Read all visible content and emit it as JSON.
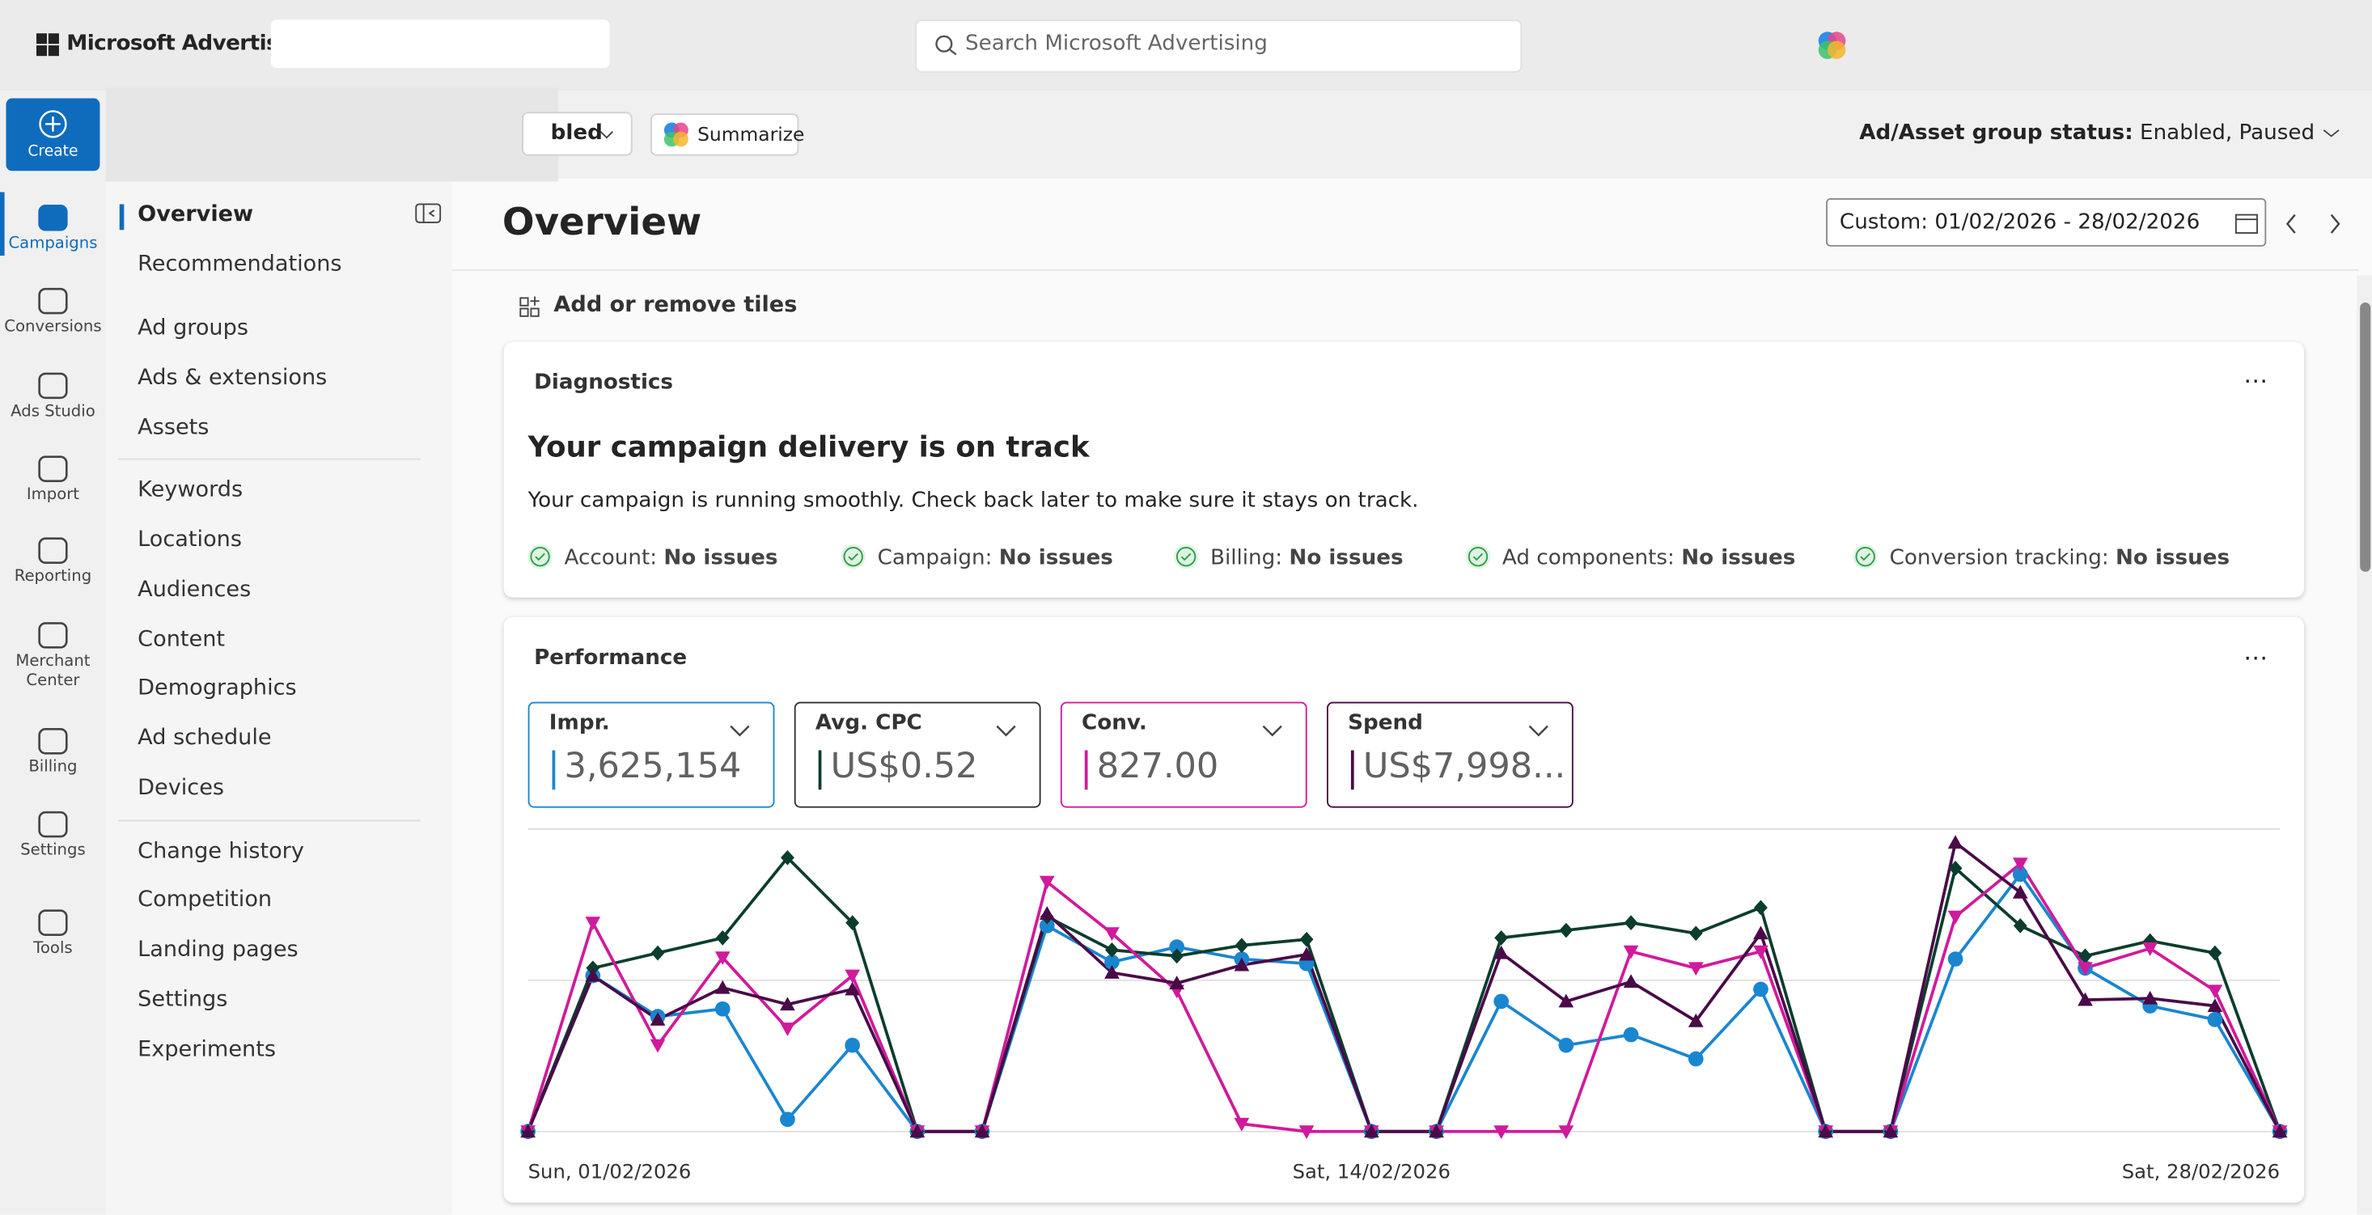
{
  "top_bar": {
    "logo": "Microsoft Advertising",
    "search_placeholder": "Search Microsoft Advertising"
  },
  "rail": {
    "create": "Create",
    "items": [
      "Campaigns",
      "Conversions",
      "Ads Studio",
      "Import",
      "Reporting",
      "Merchant Center",
      "Billing",
      "Settings",
      "Tools"
    ]
  },
  "subnav": {
    "groups": [
      [
        "Overview",
        "Recommendations"
      ],
      [
        "Ad groups",
        "Ads & extensions",
        "Assets"
      ],
      [
        "Keywords",
        "Locations",
        "Audiences",
        "Content",
        "Demographics",
        "Ad schedule",
        "Devices"
      ],
      [
        "Change history",
        "Competition",
        "Landing pages",
        "Settings",
        "Experiments"
      ]
    ]
  },
  "toolbar": {
    "filter": "bled",
    "summarize": "Summarize",
    "status_label": "Ad/Asset group status:",
    "status_value": "Enabled, Paused"
  },
  "page": {
    "title": "Overview",
    "date_range": "Custom: 01/02/2026 - 28/02/2026",
    "add_tiles": "Add or remove tiles"
  },
  "diagnostics": {
    "title": "Diagnostics",
    "heading": "Your campaign delivery is on track",
    "message": "Your campaign is running smoothly. Check back later to make sure it stays on track.",
    "checks": [
      {
        "label": "Account:",
        "status": "No issues"
      },
      {
        "label": "Campaign:",
        "status": "No issues"
      },
      {
        "label": "Billing:",
        "status": "No issues"
      },
      {
        "label": "Ad components:",
        "status": "No issues"
      },
      {
        "label": "Conversion tracking:",
        "status": "No issues"
      }
    ]
  },
  "performance": {
    "title": "Performance",
    "metric_values": [
      "3,625,154",
      "US$0.52",
      "827.00",
      "US$7,998..."
    ]
  },
  "chart_data": {
    "type": "line",
    "categories": [
      "Sun, 01/02/2026",
      null,
      null,
      null,
      null,
      null,
      null,
      null,
      null,
      null,
      null,
      null,
      null,
      "Sat, 14/02/2026",
      null,
      null,
      null,
      null,
      null,
      null,
      null,
      null,
      null,
      null,
      null,
      null,
      null,
      "Sat, 28/02/2026"
    ],
    "series": [
      {
        "name": "Impr.",
        "color": "#1a86d0",
        "marker": "circle",
        "values": [
          0,
          51.5,
          38,
          40.5,
          4,
          28.5,
          0,
          0,
          68,
          56,
          61,
          57,
          55.5,
          0,
          0,
          43,
          28.5,
          32,
          24,
          47,
          0,
          0,
          57,
          85,
          54,
          41.5,
          37,
          0
        ]
      },
      {
        "name": "Avg. CPC",
        "color": "#0b3d2e",
        "marker": "diamond",
        "values": [
          0,
          54,
          59,
          64,
          90.5,
          69,
          0,
          0,
          71,
          60,
          58,
          61.5,
          63.5,
          0,
          0,
          64,
          66.5,
          69,
          65.5,
          74,
          0,
          0,
          87,
          68,
          58,
          63,
          59,
          0
        ]
      },
      {
        "name": "Conv.",
        "color": "#d01a9c",
        "marker": "triangle-down",
        "values": [
          0,
          69,
          28.5,
          57.5,
          34,
          51.5,
          0,
          0,
          82.5,
          65.5,
          46.5,
          2.5,
          0,
          0,
          0,
          0,
          0,
          59.5,
          54,
          59.5,
          0,
          0,
          71,
          88.5,
          54,
          60.5,
          46.5,
          0
        ]
      },
      {
        "name": "Spend",
        "color": "#4a0a48",
        "marker": "triangle-up",
        "values": [
          0,
          51.5,
          37,
          47.5,
          42,
          47,
          0,
          0,
          72,
          52.5,
          49,
          55,
          58.5,
          0,
          0,
          59,
          43,
          49.5,
          36.5,
          65.5,
          0,
          0,
          95.5,
          79,
          43.5,
          44,
          41.5,
          0
        ]
      }
    ],
    "ylim": [
      0,
      100
    ],
    "yticks": [
      0,
      50,
      100
    ],
    "grid": true
  }
}
